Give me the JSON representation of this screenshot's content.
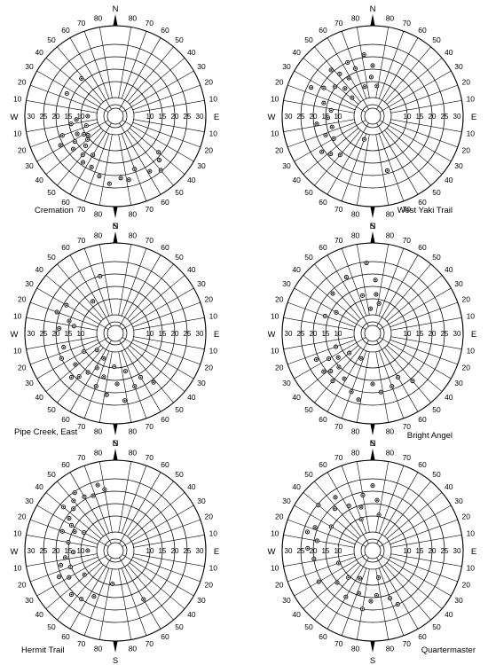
{
  "figure": {
    "ring_labels": [
      "10",
      "15",
      "20",
      "25",
      "30"
    ],
    "bearing_labels": [
      "80",
      "70",
      "60",
      "50",
      "40",
      "30",
      "20",
      "10"
    ],
    "cardinals": {
      "n": "N",
      "e": "E",
      "s": "S",
      "w": "W"
    }
  },
  "chart_data": [
    {
      "type": "scatter",
      "coordinate_system": "polar",
      "name": "Cremation",
      "radial_axis": {
        "labels": [
          "10",
          "15",
          "20",
          "25",
          "30"
        ],
        "range": [
          5,
          30
        ]
      },
      "points": [
        {
          "bearing": 250,
          "radius": 24
        },
        {
          "bearing": 265,
          "radius": 18
        },
        {
          "bearing": 245,
          "radius": 19
        },
        {
          "bearing": 260,
          "radius": 20
        },
        {
          "bearing": 240,
          "radius": 17
        },
        {
          "bearing": 235,
          "radius": 16
        },
        {
          "bearing": 230,
          "radius": 17
        },
        {
          "bearing": 238,
          "radius": 21
        },
        {
          "bearing": 225,
          "radius": 19
        },
        {
          "bearing": 232,
          "radius": 23
        },
        {
          "bearing": 220,
          "radius": 22
        },
        {
          "bearing": 215,
          "radius": 24
        },
        {
          "bearing": 210,
          "radius": 20
        },
        {
          "bearing": 205,
          "radius": 24
        },
        {
          "bearing": 195,
          "radius": 26
        },
        {
          "bearing": 185,
          "radius": 28
        },
        {
          "bearing": 175,
          "radius": 26
        },
        {
          "bearing": 168,
          "radius": 27
        },
        {
          "bearing": 160,
          "radius": 24
        },
        {
          "bearing": 148,
          "radius": 27
        },
        {
          "bearing": 140,
          "radius": 29
        },
        {
          "bearing": 135,
          "radius": 26
        },
        {
          "bearing": 130,
          "radius": 24
        },
        {
          "bearing": 295,
          "radius": 23
        },
        {
          "bearing": 318,
          "radius": 22
        },
        {
          "bearing": 252,
          "radius": 15
        },
        {
          "bearing": 242,
          "radius": 26
        },
        {
          "bearing": 270,
          "radius": 14
        }
      ]
    },
    {
      "type": "scatter",
      "coordinate_system": "polar",
      "name": "West Yaki Trail",
      "radial_axis": {
        "labels": [
          "10",
          "15",
          "20",
          "25",
          "30"
        ],
        "range": [
          5,
          30
        ]
      },
      "points": [
        {
          "bearing": 352,
          "radius": 26
        },
        {
          "bearing": 340,
          "radius": 22
        },
        {
          "bearing": 335,
          "radius": 25
        },
        {
          "bearing": 328,
          "radius": 20
        },
        {
          "bearing": 322,
          "radius": 23
        },
        {
          "bearing": 318,
          "radius": 26
        },
        {
          "bearing": 315,
          "radius": 18
        },
        {
          "bearing": 308,
          "radius": 21
        },
        {
          "bearing": 300,
          "radius": 24
        },
        {
          "bearing": 295,
          "radius": 28
        },
        {
          "bearing": 285,
          "radius": 22
        },
        {
          "bearing": 278,
          "radius": 19
        },
        {
          "bearing": 268,
          "radius": 20
        },
        {
          "bearing": 262,
          "radius": 24
        },
        {
          "bearing": 255,
          "radius": 19
        },
        {
          "bearing": 248,
          "radius": 22
        },
        {
          "bearing": 240,
          "radius": 20
        },
        {
          "bearing": 235,
          "radius": 26
        },
        {
          "bearing": 228,
          "radius": 24
        },
        {
          "bearing": 220,
          "radius": 22
        },
        {
          "bearing": 200,
          "radius": 13
        },
        {
          "bearing": 165,
          "radius": 24
        },
        {
          "bearing": 358,
          "radius": 18
        },
        {
          "bearing": 345,
          "radius": 15
        },
        {
          "bearing": 0,
          "radius": 22
        },
        {
          "bearing": 8,
          "radius": 15
        },
        {
          "bearing": 312,
          "radius": 14
        }
      ]
    },
    {
      "type": "scatter",
      "coordinate_system": "polar",
      "name": "Pipe Creek, East",
      "radial_axis": {
        "labels": [
          "10",
          "15",
          "20",
          "25",
          "30"
        ],
        "range": [
          5,
          30
        ]
      },
      "points": [
        {
          "bearing": 345,
          "radius": 25
        },
        {
          "bearing": 325,
          "radius": 18
        },
        {
          "bearing": 300,
          "radius": 24
        },
        {
          "bearing": 290,
          "radius": 26
        },
        {
          "bearing": 285,
          "radius": 21
        },
        {
          "bearing": 280,
          "radius": 19
        },
        {
          "bearing": 275,
          "radius": 24
        },
        {
          "bearing": 255,
          "radius": 23
        },
        {
          "bearing": 245,
          "radius": 25
        },
        {
          "bearing": 240,
          "radius": 17
        },
        {
          "bearing": 232,
          "radius": 22
        },
        {
          "bearing": 225,
          "radius": 26
        },
        {
          "bearing": 220,
          "radius": 24
        },
        {
          "bearing": 215,
          "radius": 21
        },
        {
          "bearing": 208,
          "radius": 18
        },
        {
          "bearing": 200,
          "radius": 24
        },
        {
          "bearing": 195,
          "radius": 20
        },
        {
          "bearing": 188,
          "radius": 26
        },
        {
          "bearing": 182,
          "radius": 16
        },
        {
          "bearing": 178,
          "radius": 22
        },
        {
          "bearing": 172,
          "radius": 28
        },
        {
          "bearing": 165,
          "radius": 18
        },
        {
          "bearing": 160,
          "radius": 24
        },
        {
          "bearing": 150,
          "radius": 22
        },
        {
          "bearing": 142,
          "radius": 26
        },
        {
          "bearing": 228,
          "radius": 13
        },
        {
          "bearing": 205,
          "radius": 14
        }
      ]
    },
    {
      "type": "scatter",
      "coordinate_system": "polar",
      "name": "Bright Angel",
      "radial_axis": {
        "labels": [
          "10",
          "15",
          "20",
          "25",
          "30"
        ],
        "range": [
          5,
          30
        ]
      },
      "points": [
        {
          "bearing": 355,
          "radius": 29
        },
        {
          "bearing": 335,
          "radius": 26
        },
        {
          "bearing": 315,
          "radius": 24
        },
        {
          "bearing": 300,
          "radius": 19
        },
        {
          "bearing": 290,
          "radius": 22
        },
        {
          "bearing": 345,
          "radius": 18
        },
        {
          "bearing": 5,
          "radius": 18
        },
        {
          "bearing": 12,
          "radius": 15
        },
        {
          "bearing": 355,
          "radius": 13
        },
        {
          "bearing": 3,
          "radius": 23
        },
        {
          "bearing": 250,
          "radius": 18
        },
        {
          "bearing": 245,
          "radius": 26
        },
        {
          "bearing": 240,
          "radius": 22
        },
        {
          "bearing": 235,
          "radius": 19
        },
        {
          "bearing": 232,
          "radius": 26
        },
        {
          "bearing": 228,
          "radius": 24
        },
        {
          "bearing": 225,
          "radius": 21
        },
        {
          "bearing": 220,
          "radius": 26
        },
        {
          "bearing": 212,
          "radius": 23
        },
        {
          "bearing": 205,
          "radius": 14
        },
        {
          "bearing": 200,
          "radius": 26
        },
        {
          "bearing": 192,
          "radius": 28
        },
        {
          "bearing": 180,
          "radius": 22
        },
        {
          "bearing": 172,
          "radius": 25
        },
        {
          "bearing": 160,
          "radius": 24
        },
        {
          "bearing": 150,
          "radius": 22
        },
        {
          "bearing": 140,
          "radius": 26
        },
        {
          "bearing": 230,
          "radius": 15
        }
      ]
    },
    {
      "type": "scatter",
      "coordinate_system": "polar",
      "name": "Hermit Trail",
      "radial_axis": {
        "labels": [
          "10",
          "15",
          "20",
          "25",
          "30"
        ],
        "range": [
          5,
          30
        ]
      },
      "points": [
        {
          "bearing": 350,
          "radius": 26
        },
        {
          "bearing": 345,
          "radius": 28
        },
        {
          "bearing": 338,
          "radius": 25
        },
        {
          "bearing": 330,
          "radius": 26
        },
        {
          "bearing": 325,
          "radius": 29
        },
        {
          "bearing": 320,
          "radius": 27
        },
        {
          "bearing": 315,
          "radius": 25
        },
        {
          "bearing": 310,
          "radius": 28
        },
        {
          "bearing": 305,
          "radius": 24
        },
        {
          "bearing": 300,
          "radius": 22
        },
        {
          "bearing": 295,
          "radius": 20
        },
        {
          "bearing": 290,
          "radius": 24
        },
        {
          "bearing": 280,
          "radius": 21
        },
        {
          "bearing": 268,
          "radius": 19
        },
        {
          "bearing": 262,
          "radius": 22
        },
        {
          "bearing": 255,
          "radius": 24
        },
        {
          "bearing": 250,
          "radius": 21
        },
        {
          "bearing": 245,
          "radius": 26
        },
        {
          "bearing": 240,
          "radius": 23
        },
        {
          "bearing": 232,
          "radius": 18
        },
        {
          "bearing": 225,
          "radius": 26
        },
        {
          "bearing": 215,
          "radius": 25
        },
        {
          "bearing": 205,
          "radius": 22
        },
        {
          "bearing": 185,
          "radius": 16
        },
        {
          "bearing": 150,
          "radius": 24
        },
        {
          "bearing": 270,
          "radius": 14
        },
        {
          "bearing": 300,
          "radius": 17
        }
      ]
    },
    {
      "type": "scatter",
      "coordinate_system": "polar",
      "name": "Quartermaster",
      "radial_axis": {
        "labels": [
          "10",
          "15",
          "20",
          "25",
          "30"
        ],
        "range": [
          5,
          30
        ]
      },
      "points": [
        {
          "bearing": 0,
          "radius": 27
        },
        {
          "bearing": 5,
          "radius": 22
        },
        {
          "bearing": 10,
          "radius": 17
        },
        {
          "bearing": 350,
          "radius": 24
        },
        {
          "bearing": 345,
          "radius": 20
        },
        {
          "bearing": 340,
          "radius": 16
        },
        {
          "bearing": 332,
          "radius": 22
        },
        {
          "bearing": 325,
          "radius": 27
        },
        {
          "bearing": 318,
          "radius": 24
        },
        {
          "bearing": 310,
          "radius": 29
        },
        {
          "bearing": 300,
          "radius": 21
        },
        {
          "bearing": 292,
          "radius": 26
        },
        {
          "bearing": 286,
          "radius": 28
        },
        {
          "bearing": 280,
          "radius": 24
        },
        {
          "bearing": 272,
          "radius": 27
        },
        {
          "bearing": 262,
          "radius": 25
        },
        {
          "bearing": 240,
          "radius": 26
        },
        {
          "bearing": 228,
          "radius": 21
        },
        {
          "bearing": 222,
          "radius": 17
        },
        {
          "bearing": 210,
          "radius": 23
        },
        {
          "bearing": 205,
          "radius": 15
        },
        {
          "bearing": 198,
          "radius": 20
        },
        {
          "bearing": 190,
          "radius": 25
        },
        {
          "bearing": 182,
          "radius": 22
        },
        {
          "bearing": 175,
          "radius": 20
        },
        {
          "bearing": 168,
          "radius": 14
        },
        {
          "bearing": 160,
          "radius": 22
        },
        {
          "bearing": 155,
          "radius": 25
        },
        {
          "bearing": 250,
          "radius": 17
        }
      ]
    }
  ]
}
